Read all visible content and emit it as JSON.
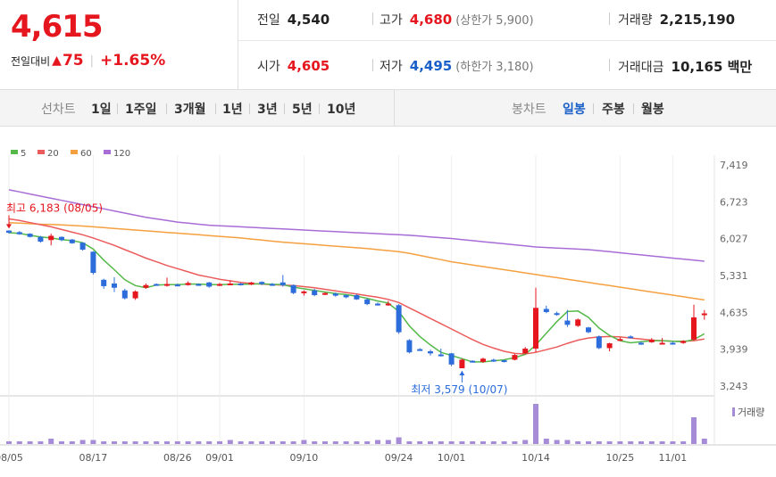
{
  "summary": {
    "price": "4,615",
    "change_label": "전일대비",
    "change_value": "75",
    "change_percent": "+1.65%",
    "prev_close_label": "전일",
    "prev_close": "4,540",
    "open_label": "시가",
    "open": "4,605",
    "high_label": "고가",
    "high": "4,680",
    "upper_limit": "(상한가 5,900)",
    "low_label": "저가",
    "low": "4,495",
    "lower_limit": "(하한가 3,180)",
    "volume_label": "거래량",
    "volume": "2,215,190",
    "amount_label": "거래대금",
    "amount": "10,165 백만"
  },
  "tabs": {
    "line_label": "선차트",
    "line_periods": [
      "1일",
      "1주일",
      "3개월",
      "1년",
      "3년",
      "5년",
      "10년"
    ],
    "candle_label": "봉차트",
    "candle_periods": [
      "일봉",
      "주봉",
      "월봉"
    ],
    "active_candle": "일봉"
  },
  "colors": {
    "up": "#e5161e",
    "down": "#2c6ddb",
    "ma5": "#54b948",
    "ma20": "#ec5b5b",
    "ma60": "#f5a040",
    "ma120": "#a86cd6",
    "volume": "#a68bd6"
  },
  "chart_data": {
    "type": "candlestick",
    "legend": [
      {
        "label": "5",
        "color": "#54b948"
      },
      {
        "label": "20",
        "color": "#ec5b5b"
      },
      {
        "label": "60",
        "color": "#f5a040"
      },
      {
        "label": "120",
        "color": "#a86cd6"
      }
    ],
    "y_ticks": [
      "7,419",
      "6,723",
      "6,027",
      "5,331",
      "4,635",
      "3,939",
      "3,243"
    ],
    "ylim": [
      3243,
      7419
    ],
    "x_ticks": [
      "08/05",
      "08/17",
      "08/26",
      "09/01",
      "09/10",
      "09/24",
      "10/01",
      "10/14",
      "10/25",
      "11/01"
    ],
    "x_tick_index": [
      0,
      8,
      16,
      20,
      28,
      37,
      42,
      50,
      58,
      63
    ],
    "max_annotation": "최고 6,183 (08/05)",
    "min_annotation": "최저 3,579 (10/07)",
    "volume_label": "거래량",
    "candles": [
      [
        6180,
        6183,
        6120,
        6140
      ],
      [
        6150,
        6170,
        6100,
        6110
      ],
      [
        6120,
        6130,
        6050,
        6060
      ],
      [
        6060,
        6080,
        5950,
        5970
      ],
      [
        6000,
        6120,
        5900,
        6080
      ],
      [
        6060,
        6070,
        5980,
        6000
      ],
      [
        6010,
        6020,
        5930,
        5940
      ],
      [
        5950,
        5960,
        5800,
        5820
      ],
      [
        5780,
        5790,
        5350,
        5380
      ],
      [
        5250,
        5270,
        5080,
        5130
      ],
      [
        5180,
        5300,
        5020,
        5100
      ],
      [
        5050,
        5080,
        4880,
        4900
      ],
      [
        4900,
        5050,
        4870,
        5030
      ],
      [
        5100,
        5180,
        5080,
        5150
      ],
      [
        5170,
        5180,
        5140,
        5160
      ],
      [
        5150,
        5290,
        5120,
        5170
      ],
      [
        5160,
        5180,
        5140,
        5150
      ],
      [
        5150,
        5220,
        5140,
        5190
      ],
      [
        5170,
        5180,
        5150,
        5160
      ],
      [
        5200,
        5210,
        5100,
        5120
      ],
      [
        5140,
        5190,
        5130,
        5170
      ],
      [
        5170,
        5240,
        5150,
        5180
      ],
      [
        5180,
        5190,
        5140,
        5150
      ],
      [
        5160,
        5210,
        5150,
        5200
      ],
      [
        5210,
        5220,
        5150,
        5170
      ],
      [
        5170,
        5190,
        5150,
        5160
      ],
      [
        5200,
        5340,
        5120,
        5150
      ],
      [
        5150,
        5160,
        4980,
        5000
      ],
      [
        5000,
        5050,
        4950,
        5030
      ],
      [
        5050,
        5080,
        4940,
        4960
      ],
      [
        4980,
        5010,
        4960,
        5000
      ],
      [
        4990,
        5010,
        4930,
        4950
      ],
      [
        4960,
        4970,
        4900,
        4920
      ],
      [
        4960,
        4980,
        4870,
        4880
      ],
      [
        4880,
        4900,
        4770,
        4790
      ],
      [
        4800,
        4820,
        4760,
        4780
      ],
      [
        4780,
        4850,
        4760,
        4800
      ],
      [
        4770,
        4790,
        4230,
        4260
      ],
      [
        4110,
        4130,
        3860,
        3880
      ],
      [
        3940,
        3960,
        3910,
        3930
      ],
      [
        3900,
        3930,
        3820,
        3860
      ],
      [
        3840,
        3950,
        3800,
        3830
      ],
      [
        3860,
        3870,
        3620,
        3650
      ],
      [
        3579,
        3760,
        3579,
        3740
      ],
      [
        3720,
        3730,
        3690,
        3700
      ],
      [
        3700,
        3780,
        3680,
        3760
      ],
      [
        3740,
        3760,
        3700,
        3720
      ],
      [
        3730,
        3740,
        3690,
        3720
      ],
      [
        3740,
        3850,
        3730,
        3830
      ],
      [
        3860,
        3980,
        3840,
        3950
      ],
      [
        3950,
        5100,
        3880,
        4720
      ],
      [
        4700,
        4760,
        4620,
        4640
      ],
      [
        4620,
        4650,
        4570,
        4590
      ],
      [
        4480,
        4680,
        4360,
        4400
      ],
      [
        4380,
        4520,
        4360,
        4500
      ],
      [
        4350,
        4360,
        4240,
        4260
      ],
      [
        4180,
        4200,
        3940,
        3960
      ],
      [
        3960,
        4060,
        3900,
        4050
      ],
      [
        4120,
        4160,
        4100,
        4130
      ],
      [
        4180,
        4200,
        4160,
        4170
      ],
      [
        4060,
        4080,
        4020,
        4050
      ],
      [
        4070,
        4150,
        4060,
        4120
      ],
      [
        4060,
        4150,
        4030,
        4060
      ],
      [
        4060,
        4080,
        4030,
        4040
      ],
      [
        4060,
        4110,
        4040,
        4090
      ],
      [
        4120,
        4780,
        4100,
        4540
      ],
      [
        4605,
        4680,
        4495,
        4615
      ]
    ],
    "volumes": [
      2,
      2,
      2,
      2,
      4,
      2,
      2,
      3,
      3,
      2,
      2,
      2,
      2,
      2,
      2,
      2,
      2,
      2,
      2,
      2,
      2,
      3,
      2,
      2,
      2,
      2,
      2,
      2,
      3,
      2,
      2,
      2,
      2,
      2,
      2,
      3,
      3,
      5,
      2,
      2,
      2,
      2,
      2,
      2,
      2,
      2,
      2,
      2,
      2,
      3,
      30,
      4,
      3,
      3,
      2,
      2,
      2,
      2,
      2,
      2,
      2,
      2,
      2,
      2,
      2,
      20,
      4
    ],
    "ma5": [
      6140,
      6125,
      6090,
      6060,
      6040,
      6010,
      5990,
      5950,
      5830,
      5620,
      5440,
      5250,
      5140,
      5100,
      5150,
      5160,
      5160,
      5170,
      5170,
      5160,
      5160,
      5165,
      5165,
      5170,
      5175,
      5165,
      5160,
      5110,
      5080,
      5050,
      5020,
      4990,
      4970,
      4940,
      4900,
      4850,
      4810,
      4650,
      4380,
      4180,
      4020,
      3880,
      3820,
      3760,
      3700,
      3700,
      3720,
      3740,
      3780,
      3840,
      4020,
      4240,
      4460,
      4650,
      4660,
      4540,
      4340,
      4200,
      4100,
      4060,
      4080,
      4100,
      4100,
      4090,
      4080,
      4120,
      4230
    ],
    "ma20": [
      6400,
      6370,
      6330,
      6290,
      6250,
      6200,
      6150,
      6100,
      6040,
      5970,
      5900,
      5820,
      5740,
      5660,
      5590,
      5520,
      5460,
      5400,
      5340,
      5300,
      5260,
      5230,
      5200,
      5180,
      5170,
      5160,
      5150,
      5140,
      5120,
      5100,
      5070,
      5040,
      5010,
      4980,
      4950,
      4920,
      4880,
      4820,
      4720,
      4620,
      4520,
      4420,
      4320,
      4220,
      4120,
      4030,
      3960,
      3900,
      3860,
      3850,
      3880,
      3930,
      3980,
      4050,
      4110,
      4150,
      4170,
      4180,
      4170,
      4150,
      4130,
      4110,
      4100,
      4090,
      4090,
      4100,
      4130
    ],
    "ma60": [
      6330,
      6320,
      6310,
      6300,
      6295,
      6285,
      6275,
      6265,
      6250,
      6235,
      6220,
      6205,
      6190,
      6175,
      6160,
      6145,
      6130,
      6115,
      6100,
      6085,
      6070,
      6055,
      6040,
      6020,
      6000,
      5980,
      5960,
      5945,
      5930,
      5915,
      5900,
      5885,
      5870,
      5855,
      5840,
      5820,
      5800,
      5780,
      5750,
      5710,
      5670,
      5630,
      5590,
      5560,
      5530,
      5500,
      5470,
      5440,
      5410,
      5380,
      5350,
      5320,
      5290,
      5260,
      5230,
      5200,
      5170,
      5140,
      5110,
      5080,
      5050,
      5020,
      4990,
      4960,
      4930,
      4900,
      4870
    ],
    "ma120": [
      6950,
      6910,
      6870,
      6830,
      6790,
      6750,
      6710,
      6670,
      6630,
      6590,
      6550,
      6510,
      6470,
      6430,
      6400,
      6370,
      6340,
      6320,
      6300,
      6280,
      6270,
      6260,
      6250,
      6240,
      6230,
      6220,
      6210,
      6200,
      6190,
      6180,
      6170,
      6160,
      6150,
      6140,
      6130,
      6120,
      6110,
      6100,
      6090,
      6075,
      6060,
      6045,
      6030,
      6010,
      5990,
      5970,
      5950,
      5930,
      5910,
      5890,
      5870,
      5860,
      5850,
      5840,
      5830,
      5820,
      5800,
      5780,
      5760,
      5740,
      5720,
      5700,
      5680,
      5660,
      5640,
      5620,
      5600
    ]
  }
}
